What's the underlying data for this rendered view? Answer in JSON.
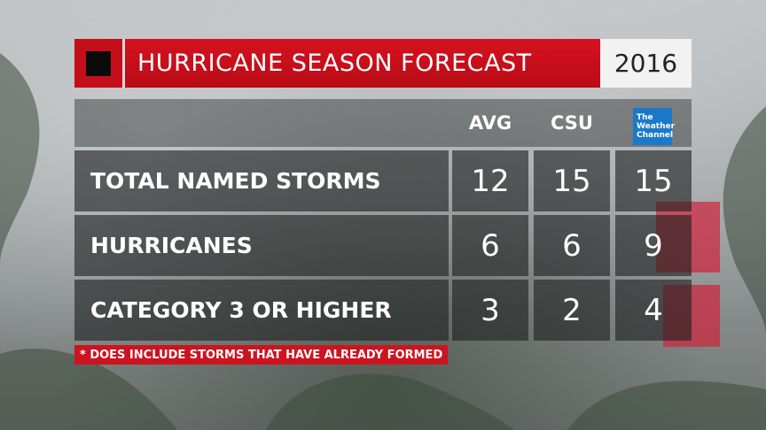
{
  "header": {
    "title": "HURRICANE SEASON FORECAST",
    "year": "2016"
  },
  "columns": {
    "avg": "AVG",
    "csu": "CSU",
    "twc_logo": [
      "The",
      "Weather",
      "Channel"
    ]
  },
  "rows": [
    {
      "label": "TOTAL NAMED STORMS",
      "avg": "12",
      "csu": "15",
      "twc": "15"
    },
    {
      "label": "HURRICANES",
      "avg": "6",
      "csu": "6",
      "twc": "9"
    },
    {
      "label": "CATEGORY 3 OR HIGHER",
      "avg": "3",
      "csu": "2",
      "twc": "4"
    }
  ],
  "footnote": "* DOES INCLUDE STORMS THAT HAVE ALREADY FORMED",
  "colors": {
    "accent_red": "#d6121f",
    "twc_blue": "#1b79c9"
  },
  "chart_data": {
    "type": "table",
    "title": "HURRICANE SEASON FORECAST",
    "subtitle": "2016",
    "columns": [
      "AVG",
      "CSU",
      "The Weather Channel"
    ],
    "rows": [
      {
        "category": "TOTAL NAMED STORMS",
        "values": [
          12,
          15,
          15
        ]
      },
      {
        "category": "HURRICANES",
        "values": [
          6,
          6,
          9
        ]
      },
      {
        "category": "CATEGORY 3 OR HIGHER",
        "values": [
          3,
          2,
          4
        ]
      }
    ]
  }
}
